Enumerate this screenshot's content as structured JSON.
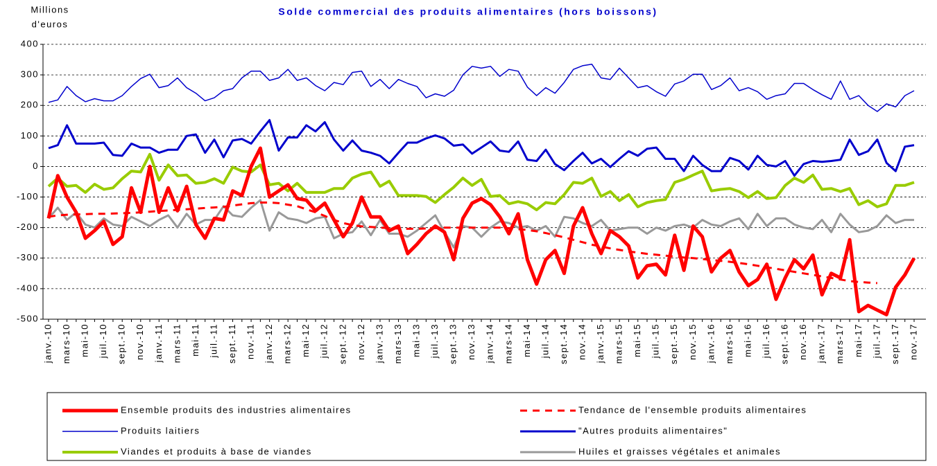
{
  "chart_data": {
    "type": "line",
    "title": "Solde commercial des produits alimentaires (hors boissons)",
    "y_label": [
      "Millions",
      "d'euros"
    ],
    "categories": [
      "janv.-10",
      null,
      "mars-10",
      null,
      "mai-10",
      null,
      "juil.-10",
      null,
      "sept.-10",
      null,
      "nov.-10",
      null,
      "janv.-11",
      null,
      "mars-11",
      null,
      "mai-11",
      null,
      "juil.-11",
      null,
      "sept.-11",
      null,
      "nov.-11",
      null,
      "janv.-12",
      null,
      "mars-12",
      null,
      "mai-12",
      null,
      "juil.-12",
      null,
      "sept.-12",
      null,
      "nov.-12",
      null,
      "janv.-13",
      null,
      "mars-13",
      null,
      "mai-13",
      null,
      "juil.-13",
      null,
      "sept.-13",
      null,
      "nov.-13",
      null,
      "janv.-14",
      null,
      "mars-14",
      null,
      "mai-14",
      null,
      "juil.-14",
      null,
      "sept.-14",
      null,
      "nov.-14",
      null,
      "janv.-15",
      null,
      "mars-15",
      null,
      "mai-15",
      null,
      "juil.-15",
      null,
      "sept.-15",
      null,
      "nov.-15",
      null,
      "janv.-16",
      null,
      "mars-16",
      null,
      "mai-16",
      null,
      "juil.-16",
      null,
      "sept.-16",
      null,
      "nov.-16",
      null,
      "janv.-17",
      null,
      "mars-17",
      null,
      "mai-17",
      null,
      "juil.-17",
      null,
      "sept.-17",
      null,
      "nov.-17"
    ],
    "ylim": [
      -500,
      400
    ],
    "yticks": [
      -500,
      -400,
      -300,
      -200,
      -100,
      0,
      100,
      200,
      300,
      400
    ],
    "grid": true,
    "series": [
      {
        "name": "Ensemble produits des industries alimentaires",
        "color": "#ff0000",
        "width": 5,
        "dash": false,
        "values": [
          -170,
          -30,
          -100,
          -150,
          -235,
          -210,
          -180,
          -255,
          -230,
          -70,
          -150,
          0,
          -150,
          -70,
          -145,
          -65,
          -190,
          -235,
          -170,
          -175,
          -80,
          -95,
          0,
          60,
          -100,
          -80,
          -60,
          -105,
          -110,
          -145,
          -120,
          -175,
          -230,
          -185,
          -100,
          -165,
          -165,
          -210,
          -195,
          -285,
          -255,
          -220,
          -195,
          -215,
          -305,
          -170,
          -120,
          -105,
          -125,
          -165,
          -220,
          -155,
          -305,
          -385,
          -305,
          -275,
          -350,
          -195,
          -135,
          -220,
          -285,
          -210,
          -230,
          -260,
          -365,
          -325,
          -320,
          -355,
          -225,
          -340,
          -195,
          -230,
          -345,
          -300,
          -275,
          -345,
          -390,
          -370,
          -320,
          -435,
          -365,
          -305,
          -335,
          -290,
          -420,
          -350,
          -365,
          -240,
          -475,
          -455,
          -470,
          -485,
          -395,
          -355,
          -300
        ]
      },
      {
        "name": "Tendance de l'ensemble produits alimentaires",
        "color": "#ff0000",
        "width": 3,
        "dash": true,
        "values": [
          -165,
          -160,
          -158,
          -157,
          -156,
          -155,
          -155,
          -154,
          -153,
          -152,
          -150,
          -148,
          -146,
          -144,
          -142,
          -140,
          -138,
          -136,
          -134,
          -132,
          -128,
          -124,
          -120,
          -118,
          -118,
          -120,
          -125,
          -130,
          -140,
          -150,
          -162,
          -175,
          -185,
          -192,
          -196,
          -198,
          -200,
          -202,
          -203,
          -204,
          -204,
          -203,
          -202,
          -200,
          -200,
          -200,
          -200,
          -200,
          -200,
          -200,
          -202,
          -205,
          -208,
          -212,
          -218,
          -225,
          -232,
          -240,
          -248,
          -256,
          -262,
          -268,
          -273,
          -278,
          -282,
          -286,
          -289,
          -292,
          -295,
          -298,
          -300,
          -303,
          -306,
          -309,
          -312,
          -316,
          -320,
          -325,
          -330,
          -335,
          -340,
          -345,
          -350,
          -355,
          -360,
          -365,
          -370,
          -375,
          -378,
          -380,
          -382,
          null,
          null,
          null,
          null
        ]
      },
      {
        "name": "Produits laitiers",
        "color": "#0000cc",
        "width": 1.5,
        "dash": false,
        "values": [
          210,
          218,
          262,
          232,
          212,
          222,
          215,
          215,
          232,
          262,
          288,
          302,
          258,
          265,
          290,
          258,
          240,
          215,
          225,
          248,
          255,
          290,
          312,
          312,
          282,
          290,
          318,
          282,
          290,
          265,
          248,
          275,
          268,
          308,
          312,
          262,
          285,
          255,
          285,
          272,
          262,
          225,
          238,
          230,
          250,
          300,
          328,
          322,
          328,
          295,
          318,
          312,
          260,
          232,
          258,
          240,
          275,
          318,
          330,
          335,
          290,
          285,
          322,
          290,
          258,
          265,
          245,
          230,
          270,
          280,
          302,
          302,
          252,
          265,
          290,
          248,
          258,
          245,
          220,
          232,
          238,
          272,
          272,
          252,
          235,
          220,
          280,
          220,
          232,
          200,
          180,
          205,
          195,
          232,
          248
        ]
      },
      {
        "name": "\"Autres produits alimentaires\"",
        "color": "#0000cc",
        "width": 3,
        "dash": false,
        "values": [
          60,
          70,
          135,
          75,
          75,
          75,
          78,
          38,
          35,
          75,
          62,
          62,
          45,
          55,
          55,
          100,
          105,
          45,
          88,
          30,
          85,
          90,
          75,
          115,
          152,
          52,
          95,
          95,
          135,
          115,
          145,
          88,
          52,
          85,
          52,
          45,
          35,
          10,
          45,
          78,
          78,
          92,
          102,
          92,
          68,
          72,
          42,
          62,
          82,
          52,
          48,
          82,
          22,
          18,
          55,
          8,
          -12,
          18,
          45,
          10,
          25,
          -2,
          25,
          50,
          35,
          58,
          62,
          25,
          25,
          -15,
          35,
          5,
          -15,
          -15,
          28,
          18,
          -10,
          35,
          5,
          0,
          18,
          -30,
          8,
          18,
          15,
          18,
          22,
          88,
          38,
          50,
          88,
          12,
          -15,
          65,
          70
        ]
      },
      {
        "name": "Viandes et produits à base de viandes",
        "color": "#99cc00",
        "width": 4,
        "dash": false,
        "values": [
          -65,
          -38,
          -65,
          -62,
          -85,
          -58,
          -75,
          -70,
          -40,
          -15,
          -18,
          40,
          -45,
          5,
          -30,
          -28,
          -55,
          -52,
          -40,
          -55,
          -2,
          -15,
          -18,
          5,
          -60,
          -55,
          -80,
          -55,
          -85,
          -85,
          -85,
          -72,
          -72,
          -38,
          -25,
          -18,
          -65,
          -48,
          -95,
          -95,
          -95,
          -98,
          -118,
          -92,
          -68,
          -38,
          -62,
          -42,
          -98,
          -95,
          -122,
          -115,
          -122,
          -142,
          -118,
          -122,
          -92,
          -52,
          -55,
          -38,
          -98,
          -82,
          -112,
          -92,
          -132,
          -118,
          -112,
          -108,
          -52,
          -42,
          -28,
          -15,
          -80,
          -75,
          -72,
          -82,
          -102,
          -82,
          -105,
          -102,
          -62,
          -38,
          -52,
          -28,
          -75,
          -72,
          -82,
          -72,
          -125,
          -112,
          -132,
          -122,
          -62,
          -62,
          -52
        ]
      },
      {
        "name": "Huiles et graisses végétales et animales",
        "color": "#999999",
        "width": 3,
        "dash": false,
        "values": [
          -170,
          -135,
          -175,
          -150,
          -190,
          -200,
          -170,
          -190,
          -195,
          -165,
          -180,
          -195,
          -175,
          -160,
          -200,
          -155,
          -190,
          -175,
          -175,
          -130,
          -160,
          -165,
          -135,
          -110,
          -210,
          -150,
          -170,
          -175,
          -185,
          -170,
          -165,
          -235,
          -220,
          -215,
          -180,
          -225,
          -175,
          -220,
          -220,
          -230,
          -210,
          -185,
          -160,
          -215,
          -265,
          -195,
          -200,
          -230,
          -200,
          -180,
          -185,
          -200,
          -195,
          -210,
          -195,
          -230,
          -165,
          -170,
          -185,
          -195,
          -175,
          -210,
          -205,
          -200,
          -200,
          -220,
          -200,
          -210,
          -195,
          -190,
          -200,
          -175,
          -190,
          -195,
          -180,
          -170,
          -205,
          -155,
          -195,
          -170,
          -170,
          -190,
          -200,
          -205,
          -175,
          -215,
          -155,
          -190,
          -215,
          -210,
          -195,
          -160,
          -185,
          -175,
          -175
        ]
      }
    ]
  }
}
